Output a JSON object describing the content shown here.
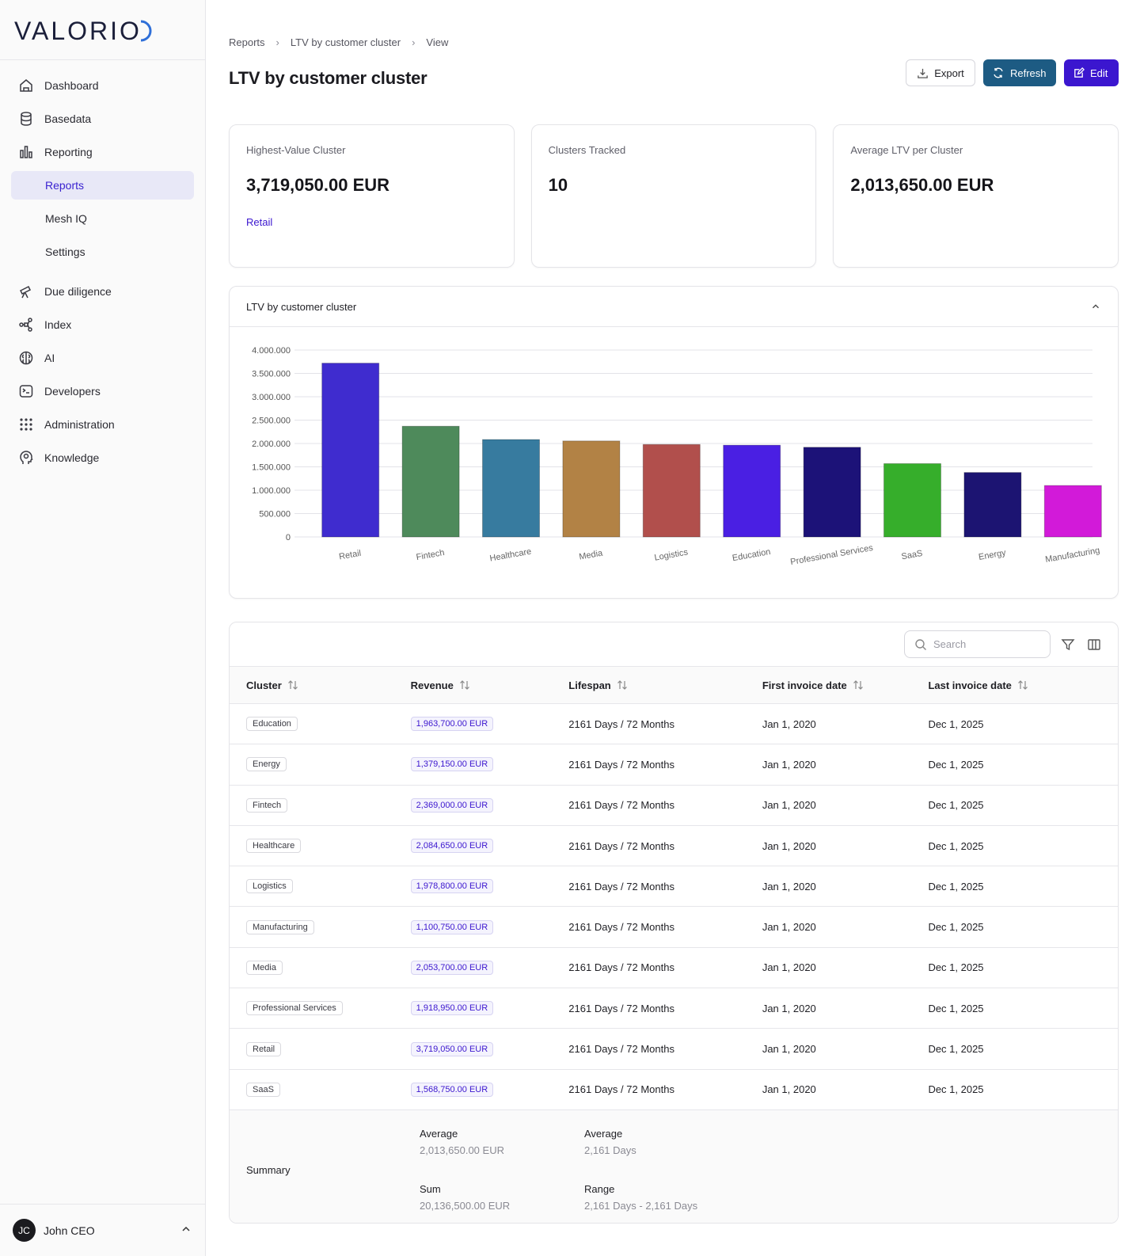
{
  "brand": {
    "name": "VALORIO"
  },
  "sidebar": {
    "items": [
      {
        "label": "Dashboard",
        "icon": "home-icon"
      },
      {
        "label": "Basedata",
        "icon": "database-icon"
      },
      {
        "label": "Reporting",
        "icon": "bar-chart-icon"
      },
      {
        "label": "Reports"
      },
      {
        "label": "Mesh IQ"
      },
      {
        "label": "Settings"
      },
      {
        "label": "Due diligence",
        "icon": "telescope-icon"
      },
      {
        "label": "Index",
        "icon": "network-icon"
      },
      {
        "label": "AI",
        "icon": "brain-icon"
      },
      {
        "label": "Developers",
        "icon": "terminal-icon"
      },
      {
        "label": "Administration",
        "icon": "grid-dots-icon"
      },
      {
        "label": "Knowledge",
        "icon": "head-icon"
      }
    ],
    "user": {
      "initials": "JC",
      "name": "John CEO"
    }
  },
  "breadcrumb": [
    "Reports",
    "LTV by customer cluster",
    "View"
  ],
  "page": {
    "title": "LTV by customer cluster"
  },
  "actions": {
    "export": "Export",
    "refresh": "Refresh",
    "edit": "Edit"
  },
  "kpis": [
    {
      "label": "Highest-Value Cluster",
      "value": "3,719,050.00 EUR",
      "link": "Retail"
    },
    {
      "label": "Clusters Tracked",
      "value": "10"
    },
    {
      "label": "Average LTV per Cluster",
      "value": "2,013,650.00 EUR"
    }
  ],
  "chart_card": {
    "title": "LTV by customer cluster"
  },
  "chart_data": {
    "type": "bar",
    "categories": [
      "Retail",
      "Fintech",
      "Healthcare",
      "Media",
      "Logistics",
      "Education",
      "Professional Services",
      "SaaS",
      "Energy",
      "Manufacturing"
    ],
    "values": [
      3719050,
      2369000,
      2084650,
      2053700,
      1978800,
      1963700,
      1918950,
      1568750,
      1379150,
      1100750
    ],
    "colors": [
      "#3f2ccf",
      "#4e8a5b",
      "#377b9f",
      "#b28245",
      "#b14f4c",
      "#4a1fe3",
      "#1c1278",
      "#36ae2b",
      "#1c1472",
      "#d21ad9"
    ],
    "ylim": [
      0,
      4000000
    ],
    "yticks": [
      "0",
      "500.000",
      "1.000.000",
      "1.500.000",
      "2.000.000",
      "2.500.000",
      "3.000.000",
      "3.500.000",
      "4.000.000"
    ],
    "grid": true
  },
  "table": {
    "search_placeholder": "Search",
    "columns": [
      "Cluster",
      "Revenue",
      "Lifespan",
      "First invoice date",
      "Last invoice date"
    ],
    "rows": [
      {
        "cluster": "Education",
        "revenue": "1,963,700.00 EUR",
        "lifespan": "2161 Days / 72 Months",
        "first": "Jan 1, 2020",
        "last": "Dec 1, 2025"
      },
      {
        "cluster": "Energy",
        "revenue": "1,379,150.00 EUR",
        "lifespan": "2161 Days / 72 Months",
        "first": "Jan 1, 2020",
        "last": "Dec 1, 2025"
      },
      {
        "cluster": "Fintech",
        "revenue": "2,369,000.00 EUR",
        "lifespan": "2161 Days / 72 Months",
        "first": "Jan 1, 2020",
        "last": "Dec 1, 2025"
      },
      {
        "cluster": "Healthcare",
        "revenue": "2,084,650.00 EUR",
        "lifespan": "2161 Days / 72 Months",
        "first": "Jan 1, 2020",
        "last": "Dec 1, 2025"
      },
      {
        "cluster": "Logistics",
        "revenue": "1,978,800.00 EUR",
        "lifespan": "2161 Days / 72 Months",
        "first": "Jan 1, 2020",
        "last": "Dec 1, 2025"
      },
      {
        "cluster": "Manufacturing",
        "revenue": "1,100,750.00 EUR",
        "lifespan": "2161 Days / 72 Months",
        "first": "Jan 1, 2020",
        "last": "Dec 1, 2025"
      },
      {
        "cluster": "Media",
        "revenue": "2,053,700.00 EUR",
        "lifespan": "2161 Days / 72 Months",
        "first": "Jan 1, 2020",
        "last": "Dec 1, 2025"
      },
      {
        "cluster": "Professional Services",
        "revenue": "1,918,950.00 EUR",
        "lifespan": "2161 Days / 72 Months",
        "first": "Jan 1, 2020",
        "last": "Dec 1, 2025"
      },
      {
        "cluster": "Retail",
        "revenue": "3,719,050.00 EUR",
        "lifespan": "2161 Days / 72 Months",
        "first": "Jan 1, 2020",
        "last": "Dec 1, 2025"
      },
      {
        "cluster": "SaaS",
        "revenue": "1,568,750.00 EUR",
        "lifespan": "2161 Days / 72 Months",
        "first": "Jan 1, 2020",
        "last": "Dec 1, 2025"
      }
    ],
    "summary": {
      "label": "Summary",
      "revenue_avg_label": "Average",
      "revenue_avg": "2,013,650.00 EUR",
      "revenue_sum_label": "Sum",
      "revenue_sum": "20,136,500.00 EUR",
      "lifespan_avg_label": "Average",
      "lifespan_avg": "2,161 Days",
      "lifespan_range_label": "Range",
      "lifespan_range": "2,161 Days - 2,161 Days"
    }
  }
}
